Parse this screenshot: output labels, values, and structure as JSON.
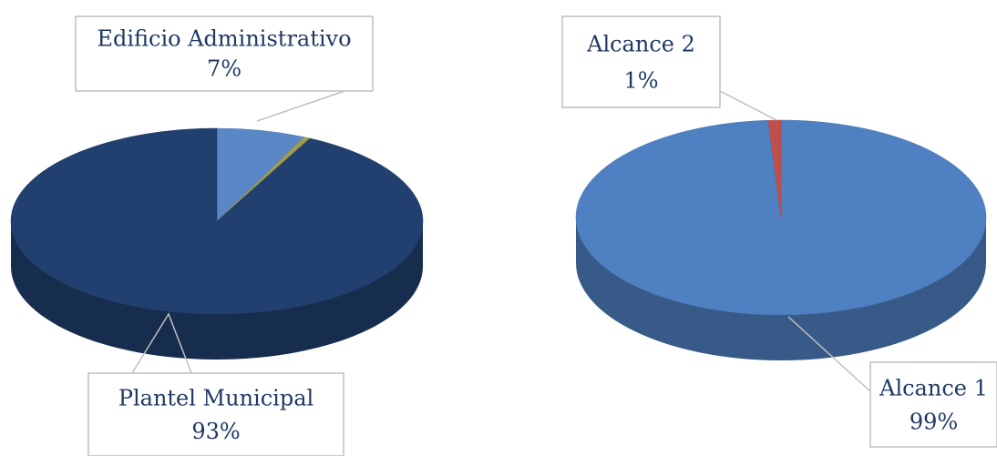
{
  "chart_data": [
    {
      "type": "pie",
      "categories": [
        "Edificio Administrativo",
        null,
        "Plantel Municipal"
      ],
      "values": [
        7,
        0.5,
        93
      ],
      "value_labels": [
        "7%",
        null,
        "93%"
      ],
      "colors": [
        "#5a87c5",
        "#a09c4c",
        "#21406f"
      ]
    },
    {
      "type": "pie",
      "categories": [
        "Alcance 1",
        "Alcance 2"
      ],
      "values": [
        99,
        1
      ],
      "value_labels": [
        "99%",
        "1%"
      ],
      "colors": [
        "#4f80c2",
        "#c0504d"
      ]
    }
  ]
}
